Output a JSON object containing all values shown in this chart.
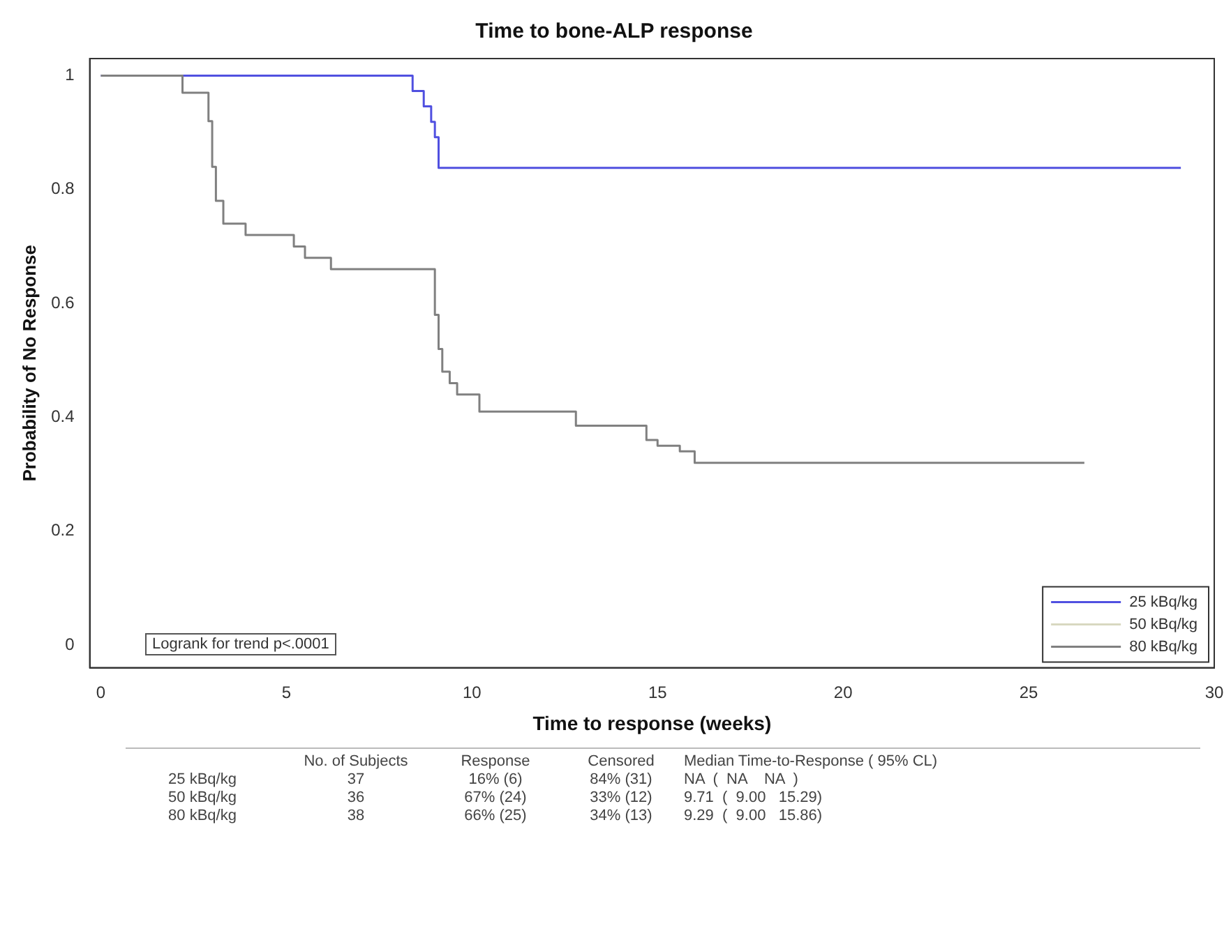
{
  "chart_data": {
    "type": "step",
    "title": "Time to bone-ALP response",
    "xlabel": "Time to response (weeks)",
    "ylabel": "Probability of No Response",
    "xlim": [
      -0.3,
      30
    ],
    "xticks": [
      0,
      5,
      10,
      15,
      20,
      25,
      30
    ],
    "ylim": [
      -0.04,
      1.03
    ],
    "yticks": [
      0,
      0.2,
      0.4,
      0.6,
      0.8,
      1
    ],
    "grid": false,
    "legend": "bottom right",
    "marker": "none",
    "series": [
      {
        "name": "25 kBq/kg",
        "color": "#5050e0",
        "x": [
          0,
          8.4,
          8.7,
          8.9,
          9.0,
          9.1,
          29.1
        ],
        "values": [
          1,
          0.973,
          0.946,
          0.919,
          0.892,
          0.838,
          0.838
        ]
      },
      {
        "name": "50 kBq/kg",
        "color": "#d8d8c0"
      },
      {
        "name": "80 kBq/kg",
        "color": "#808080",
        "x": [
          0,
          2.2,
          2.9,
          3.0,
          3.1,
          3.3,
          3.9,
          5.2,
          5.5,
          6.2,
          9.0,
          9.1,
          9.2,
          9.4,
          9.6,
          10.2,
          12.8,
          14.7,
          15.0,
          15.6,
          16.0,
          26.5
        ],
        "values": [
          1,
          0.97,
          0.92,
          0.84,
          0.78,
          0.74,
          0.72,
          0.7,
          0.68,
          0.66,
          0.58,
          0.52,
          0.48,
          0.46,
          0.44,
          0.41,
          0.385,
          0.36,
          0.35,
          0.34,
          0.32,
          0.32
        ]
      }
    ],
    "annotations": [
      "Logrank for trend p<.0001",
      "No. of Subjects",
      "Response",
      "Censored",
      "Median Time-to-Response ( 95% CL)",
      "25 kBq/kg",
      "37",
      "16% (6)",
      "84% (31)",
      "NA  (  NA    NA  )",
      "50 kBq/kg",
      "36",
      "67% (24)",
      "33% (12)",
      "9.71  (  9.00   15.29)",
      "80 kBq/kg",
      "38",
      "66% (25)",
      "34% (13)",
      "9.29  (  9.00   15.86)"
    ]
  }
}
